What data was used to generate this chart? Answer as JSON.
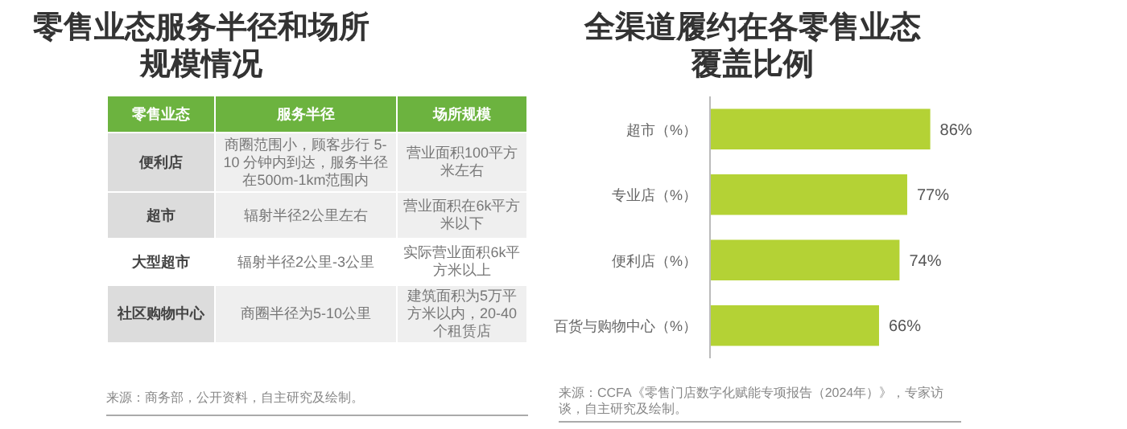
{
  "chart_data": [
    {
      "type": "other",
      "title": "零售业态服务半径和场所规模情况",
      "ylabel": "零售业态",
      "categories": [
        "服务半径",
        "场所规模"
      ],
      "y_categories": [
        "便利店",
        "超市",
        "大型超市",
        "社区购物中心"
      ],
      "cell_labels": [
        [
          "商圈范围小，顾客步行 5-10 分钟内到达，服务半径在500m-1km范围内",
          "营业面积100平方米左右"
        ],
        [
          "辐射半径2公里左右",
          "营业面积在6k平方米以下"
        ],
        [
          "辐射半径2公里-3公里",
          "实际营业面积6k平方米以上"
        ],
        [
          "商圈半径为5-10公里",
          "建筑面积为5万平方米以内，20-40个租赁店"
        ]
      ],
      "annotations": [
        "来源：商务部，公开资料，自主研究及绘制。"
      ]
    },
    {
      "type": "bar",
      "orientation": "horizontal",
      "title": "全渠道履约在各零售业态覆盖比例",
      "categories": [
        "超市（%）",
        "专业店（%）",
        "便利店（%）",
        "百货与购物中心（%）"
      ],
      "values": [
        86,
        77,
        74,
        66
      ],
      "color": "#b4d235",
      "value_labels": [
        "86%",
        "77%",
        "74%",
        "66%"
      ],
      "annotations": [
        "来源：CCFA《零售门店数字化赋能专项报告（2024年）》，专家访谈，自主研究及绘制。"
      ]
    }
  ]
}
